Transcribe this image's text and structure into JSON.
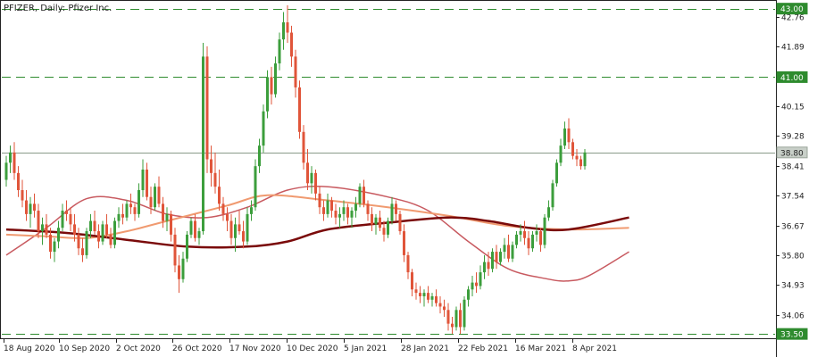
{
  "header": {
    "title": "PFIZER, Daily:  Pfizer Inc."
  },
  "colors": {
    "bull": "#3c9e3c",
    "bear": "#e0553a",
    "level": "#2e8b2e",
    "level_text": "#ffffff",
    "current": "#8a9a8a",
    "ma_long": "#7a0a0a",
    "ma_mid": "#f09a70",
    "ma_short": "#c85a60",
    "axis": "#222222"
  },
  "chart_data": {
    "type": "candlestick",
    "title": "PFIZER, Daily:  Pfizer Inc.",
    "ylim": [
      33.4,
      43.2
    ],
    "y_ticks": [
      34.06,
      34.93,
      35.8,
      36.67,
      37.54,
      38.41,
      39.28,
      40.15,
      41.89,
      42.76
    ],
    "x_ticks": [
      "18 Aug 2020",
      "10 Sep 2020",
      "2 Oct 2020",
      "26 Oct 2020",
      "17 Nov 2020",
      "10 Dec 2020",
      "5 Jan 2021",
      "28 Jan 2021",
      "22 Feb 2021",
      "16 Mar 2021",
      "8 Apr 2021"
    ],
    "levels": [
      {
        "label": "43.00",
        "value": 43.0
      },
      {
        "label": "41.00",
        "value": 41.0
      },
      {
        "label": "33.50",
        "value": 33.5
      }
    ],
    "current_price": {
      "label": "38.80",
      "value": 38.8
    },
    "candles": [
      [
        38.0,
        38.7,
        37.8,
        38.5
      ],
      [
        38.5,
        39.0,
        38.2,
        38.8
      ],
      [
        38.8,
        39.1,
        38.0,
        38.2
      ],
      [
        38.2,
        38.4,
        37.5,
        37.7
      ],
      [
        37.7,
        38.0,
        37.2,
        37.4
      ],
      [
        37.4,
        37.7,
        36.8,
        37.0
      ],
      [
        37.0,
        37.5,
        36.6,
        37.3
      ],
      [
        37.3,
        37.6,
        36.9,
        37.1
      ],
      [
        37.1,
        37.3,
        36.3,
        36.5
      ],
      [
        36.5,
        36.9,
        36.1,
        36.7
      ],
      [
        36.7,
        37.0,
        36.3,
        36.4
      ],
      [
        36.4,
        36.6,
        35.7,
        35.9
      ],
      [
        35.9,
        36.3,
        35.6,
        36.2
      ],
      [
        36.2,
        36.8,
        36.0,
        36.6
      ],
      [
        36.6,
        37.3,
        36.5,
        37.1
      ],
      [
        37.1,
        37.4,
        36.8,
        37.0
      ],
      [
        37.0,
        37.2,
        36.5,
        36.7
      ],
      [
        36.7,
        37.0,
        36.2,
        36.4
      ],
      [
        36.4,
        36.6,
        35.8,
        36.0
      ],
      [
        36.0,
        36.3,
        35.6,
        35.8
      ],
      [
        35.8,
        36.6,
        35.7,
        36.5
      ],
      [
        36.5,
        37.0,
        36.3,
        36.8
      ],
      [
        36.8,
        37.1,
        36.4,
        36.5
      ],
      [
        36.5,
        36.7,
        36.0,
        36.2
      ],
      [
        36.2,
        36.8,
        36.1,
        36.7
      ],
      [
        36.7,
        37.0,
        36.3,
        36.4
      ],
      [
        36.4,
        36.6,
        36.0,
        36.1
      ],
      [
        36.1,
        36.9,
        36.0,
        36.8
      ],
      [
        36.8,
        37.2,
        36.6,
        37.0
      ],
      [
        37.0,
        37.3,
        36.7,
        36.9
      ],
      [
        36.9,
        37.4,
        36.8,
        37.3
      ],
      [
        37.3,
        37.6,
        37.0,
        37.2
      ],
      [
        37.2,
        37.3,
        36.8,
        37.0
      ],
      [
        37.0,
        37.9,
        36.9,
        37.7
      ],
      [
        37.7,
        38.6,
        37.5,
        38.3
      ],
      [
        38.3,
        38.5,
        37.4,
        37.5
      ],
      [
        37.5,
        37.8,
        37.0,
        37.2
      ],
      [
        37.2,
        37.9,
        37.1,
        37.8
      ],
      [
        37.8,
        38.1,
        37.2,
        37.3
      ],
      [
        37.3,
        37.5,
        36.6,
        36.8
      ],
      [
        36.8,
        37.2,
        36.5,
        37.0
      ],
      [
        37.0,
        37.1,
        36.2,
        36.4
      ],
      [
        36.4,
        36.6,
        35.3,
        35.5
      ],
      [
        35.5,
        35.8,
        34.7,
        35.1
      ],
      [
        35.1,
        35.9,
        35.0,
        35.7
      ],
      [
        35.7,
        36.5,
        35.6,
        36.4
      ],
      [
        36.4,
        36.9,
        36.3,
        36.8
      ],
      [
        36.8,
        37.0,
        36.2,
        36.3
      ],
      [
        36.3,
        36.6,
        36.1,
        36.5
      ],
      [
        36.5,
        42.0,
        36.4,
        41.6
      ],
      [
        41.6,
        41.9,
        38.2,
        38.6
      ],
      [
        38.6,
        39.0,
        37.8,
        38.2
      ],
      [
        38.2,
        38.8,
        37.6,
        37.8
      ],
      [
        37.8,
        38.3,
        37.1,
        37.3
      ],
      [
        37.3,
        37.5,
        36.8,
        37.0
      ],
      [
        37.0,
        37.2,
        36.5,
        36.8
      ],
      [
        36.8,
        37.0,
        36.1,
        36.3
      ],
      [
        36.3,
        36.9,
        35.9,
        36.7
      ],
      [
        36.7,
        37.1,
        36.4,
        36.5
      ],
      [
        36.5,
        36.8,
        36.0,
        36.2
      ],
      [
        36.2,
        37.2,
        36.1,
        37.0
      ],
      [
        37.0,
        37.4,
        36.8,
        37.2
      ],
      [
        37.2,
        38.6,
        37.1,
        38.4
      ],
      [
        38.4,
        39.2,
        38.2,
        39.0
      ],
      [
        39.0,
        40.2,
        38.8,
        40.0
      ],
      [
        40.0,
        41.2,
        39.8,
        41.0
      ],
      [
        41.0,
        41.3,
        40.2,
        40.5
      ],
      [
        40.5,
        41.6,
        40.4,
        41.4
      ],
      [
        41.4,
        42.3,
        41.2,
        42.1
      ],
      [
        42.1,
        42.9,
        41.8,
        42.6
      ],
      [
        42.6,
        43.1,
        42.0,
        42.3
      ],
      [
        42.3,
        42.5,
        41.3,
        41.6
      ],
      [
        41.6,
        41.8,
        40.4,
        40.7
      ],
      [
        40.7,
        40.9,
        39.2,
        39.4
      ],
      [
        39.4,
        39.6,
        38.3,
        38.5
      ],
      [
        38.5,
        38.9,
        37.7,
        37.9
      ],
      [
        37.9,
        38.4,
        37.6,
        38.2
      ],
      [
        38.2,
        38.3,
        37.4,
        37.6
      ],
      [
        37.6,
        37.8,
        37.0,
        37.2
      ],
      [
        37.2,
        37.4,
        36.8,
        37.0
      ],
      [
        37.0,
        37.6,
        36.9,
        37.4
      ],
      [
        37.4,
        37.5,
        36.9,
        37.1
      ],
      [
        37.1,
        37.3,
        36.7,
        36.9
      ],
      [
        36.9,
        37.2,
        36.6,
        37.0
      ],
      [
        37.0,
        37.4,
        36.8,
        37.2
      ],
      [
        37.2,
        37.3,
        36.7,
        36.9
      ],
      [
        36.9,
        37.2,
        36.6,
        37.1
      ],
      [
        37.1,
        37.5,
        36.9,
        37.3
      ],
      [
        37.3,
        37.9,
        37.2,
        37.8
      ],
      [
        37.8,
        38.0,
        37.2,
        37.3
      ],
      [
        37.3,
        37.4,
        36.8,
        37.0
      ],
      [
        37.0,
        37.2,
        36.5,
        36.7
      ],
      [
        36.7,
        37.0,
        36.4,
        36.9
      ],
      [
        36.9,
        37.1,
        36.5,
        36.6
      ],
      [
        36.6,
        36.8,
        36.2,
        36.4
      ],
      [
        36.4,
        36.9,
        36.3,
        36.8
      ],
      [
        36.8,
        37.5,
        36.7,
        37.3
      ],
      [
        37.3,
        37.4,
        36.8,
        37.0
      ],
      [
        37.0,
        37.1,
        36.4,
        36.5
      ],
      [
        36.5,
        36.7,
        35.6,
        35.8
      ],
      [
        35.8,
        35.9,
        35.1,
        35.3
      ],
      [
        35.3,
        35.4,
        34.6,
        34.8
      ],
      [
        34.8,
        35.0,
        34.5,
        34.7
      ],
      [
        34.7,
        34.9,
        34.4,
        34.6
      ],
      [
        34.6,
        34.8,
        34.3,
        34.7
      ],
      [
        34.7,
        34.9,
        34.4,
        34.5
      ],
      [
        34.5,
        34.7,
        34.3,
        34.6
      ],
      [
        34.6,
        34.8,
        34.3,
        34.4
      ],
      [
        34.4,
        34.6,
        34.1,
        34.3
      ],
      [
        34.3,
        34.5,
        34.0,
        34.2
      ],
      [
        34.2,
        34.4,
        33.6,
        33.8
      ],
      [
        33.8,
        34.0,
        33.5,
        33.7
      ],
      [
        33.7,
        34.3,
        33.6,
        34.2
      ],
      [
        34.2,
        34.4,
        33.5,
        33.7
      ],
      [
        33.7,
        34.6,
        33.6,
        34.5
      ],
      [
        34.5,
        34.9,
        34.3,
        34.8
      ],
      [
        34.8,
        35.2,
        34.6,
        35.0
      ],
      [
        35.0,
        35.3,
        34.7,
        34.9
      ],
      [
        34.9,
        35.5,
        34.8,
        35.3
      ],
      [
        35.3,
        35.8,
        35.1,
        35.6
      ],
      [
        35.6,
        35.9,
        35.2,
        35.4
      ],
      [
        35.4,
        36.0,
        35.3,
        35.9
      ],
      [
        35.9,
        36.1,
        35.4,
        35.6
      ],
      [
        35.6,
        36.0,
        35.5,
        35.9
      ],
      [
        35.9,
        36.3,
        35.7,
        36.1
      ],
      [
        36.1,
        36.4,
        35.6,
        35.7
      ],
      [
        35.7,
        36.2,
        35.6,
        36.1
      ],
      [
        36.1,
        36.5,
        36.0,
        36.4
      ],
      [
        36.4,
        36.7,
        36.2,
        36.5
      ],
      [
        36.5,
        36.8,
        36.1,
        36.3
      ],
      [
        36.3,
        36.5,
        35.8,
        36.0
      ],
      [
        36.0,
        36.5,
        35.9,
        36.4
      ],
      [
        36.4,
        36.7,
        36.2,
        36.5
      ],
      [
        36.5,
        36.6,
        35.9,
        36.1
      ],
      [
        36.1,
        37.0,
        36.0,
        36.9
      ],
      [
        36.9,
        37.4,
        36.8,
        37.2
      ],
      [
        37.2,
        38.0,
        37.1,
        37.9
      ],
      [
        37.9,
        38.6,
        37.8,
        38.5
      ],
      [
        38.5,
        39.2,
        38.4,
        39.0
      ],
      [
        39.0,
        39.7,
        38.9,
        39.5
      ],
      [
        39.5,
        39.8,
        38.9,
        39.1
      ],
      [
        39.1,
        39.2,
        38.6,
        38.7
      ],
      [
        38.7,
        38.9,
        38.4,
        38.6
      ],
      [
        38.6,
        38.7,
        38.3,
        38.4
      ],
      [
        38.4,
        38.9,
        38.3,
        38.8
      ]
    ],
    "ma_long": [
      [
        0,
        36.55
      ],
      [
        15,
        36.45
      ],
      [
        30,
        36.25
      ],
      [
        45,
        36.05
      ],
      [
        60,
        36.05
      ],
      [
        70,
        36.2
      ],
      [
        80,
        36.55
      ],
      [
        95,
        36.75
      ],
      [
        110,
        36.9
      ],
      [
        120,
        36.8
      ],
      [
        130,
        36.6
      ],
      [
        140,
        36.55
      ],
      [
        155,
        36.9
      ]
    ],
    "ma_mid": [
      [
        0,
        36.4
      ],
      [
        10,
        36.35
      ],
      [
        20,
        36.3
      ],
      [
        30,
        36.5
      ],
      [
        40,
        36.8
      ],
      [
        55,
        37.25
      ],
      [
        65,
        37.55
      ],
      [
        80,
        37.4
      ],
      [
        95,
        37.2
      ],
      [
        110,
        36.95
      ],
      [
        125,
        36.65
      ],
      [
        140,
        36.55
      ],
      [
        155,
        36.6
      ]
    ],
    "ma_short": [
      [
        0,
        35.8
      ],
      [
        10,
        36.6
      ],
      [
        20,
        37.45
      ],
      [
        30,
        37.4
      ],
      [
        40,
        37.0
      ],
      [
        50,
        36.9
      ],
      [
        60,
        37.2
      ],
      [
        70,
        37.7
      ],
      [
        80,
        37.8
      ],
      [
        95,
        37.5
      ],
      [
        105,
        37.1
      ],
      [
        115,
        36.2
      ],
      [
        125,
        35.4
      ],
      [
        135,
        35.1
      ],
      [
        140,
        35.05
      ],
      [
        145,
        35.2
      ],
      [
        155,
        35.9
      ]
    ]
  }
}
